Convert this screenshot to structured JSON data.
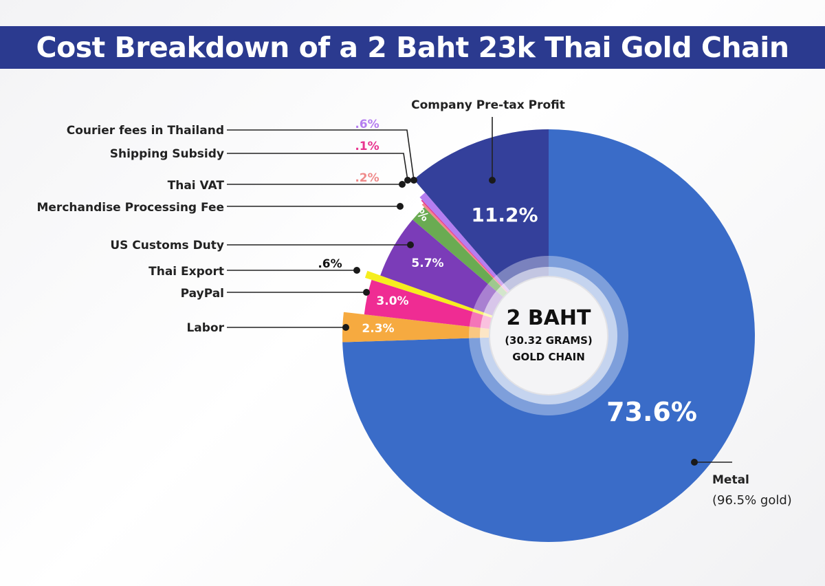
{
  "title": "Cost Breakdown of a 2 Baht 23k Thai Gold Chain",
  "center": {
    "title": "2 BAHT",
    "line2": "(30.32 GRAMS)",
    "line3": "GOLD CHAIN"
  },
  "metal_note": "(96.5% gold)",
  "colors": {
    "title_bar": "#2b3a8f",
    "metal": "#3a6cc8",
    "profit": "#34409b",
    "courier": "#b57ef0",
    "shipping": "#e8348f",
    "thai_vat": "#ef8a8a",
    "merchandise": "#6aab52",
    "customs": "#7b3cb8",
    "thai_export": "#f6ee1e",
    "paypal": "#ef2c93",
    "labor": "#f6aa40"
  },
  "chart_data": {
    "type": "pie",
    "title": "Cost Breakdown of a 2 Baht 23k Thai Gold Chain",
    "slices": [
      {
        "label": "Metal",
        "value": 73.6,
        "display": "73.6%",
        "color": "#3a6cc8"
      },
      {
        "label": "Labor",
        "value": 2.3,
        "display": "2.3%",
        "color": "#f6aa40"
      },
      {
        "label": "PayPal",
        "value": 3.0,
        "display": "3.0%",
        "color": "#ef2c93"
      },
      {
        "label": "Thai Export",
        "value": 0.6,
        "display": ".6%",
        "color": "#f6ee1e"
      },
      {
        "label": "US Customs Duty",
        "value": 5.7,
        "display": "5.7%",
        "color": "#7b3cb8"
      },
      {
        "label": "Merchandise Processing Fee",
        "value": 1.5,
        "display": "1.5%",
        "color": "#6aab52"
      },
      {
        "label": "Thai VAT",
        "value": 0.2,
        "display": ".2%",
        "color": "#ef8a8a"
      },
      {
        "label": "Shipping Subsidy",
        "value": 0.1,
        "display": ".1%",
        "color": "#e8348f"
      },
      {
        "label": "Courier fees in Thailand",
        "value": 0.6,
        "display": ".6%",
        "color": "#b57ef0"
      },
      {
        "label": "Company Pre-tax Profit",
        "value": 11.2,
        "display": "11.2%",
        "color": "#34409b"
      }
    ]
  }
}
